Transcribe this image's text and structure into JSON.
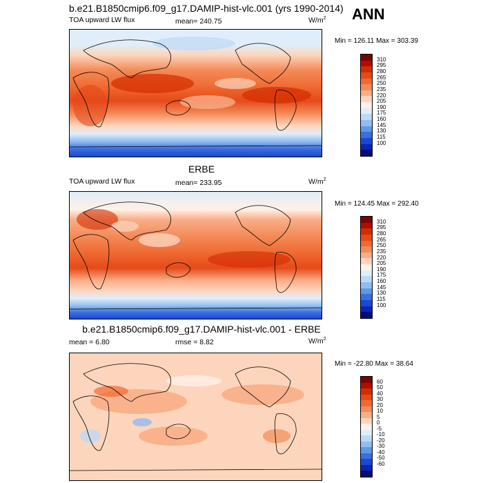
{
  "season": "ANN",
  "panels": [
    {
      "title": "b.e21.B1850cmip6.f09_g17.DAMIP-hist-vlc.001 (yrs 1990-2014)",
      "left_label": "TOA upward LW flux",
      "center_label": "mean= 240.75",
      "units": "W/m",
      "units_sup": "2",
      "minmax": "Min = 126.11 Max = 303.39",
      "colorbar": [
        "310",
        "295",
        "280",
        "265",
        "250",
        "235",
        "220",
        "205",
        "190",
        "175",
        "160",
        "145",
        "130",
        "115",
        "100"
      ],
      "colors": [
        "#7a0403",
        "#b30c00",
        "#d42c00",
        "#e64a19",
        "#ef6a32",
        "#f48a58",
        "#f9ae87",
        "#fdd5bd",
        "#fff1e6",
        "#dfeefa",
        "#bdd9f5",
        "#91bcf0",
        "#6496e6",
        "#3a6fde",
        "#1a48d4",
        "#0a25b6",
        "#000d7a"
      ]
    },
    {
      "title": "ERBE",
      "left_label": "TOA upward LW flux",
      "center_label": "mean= 233.95",
      "units": "W/m",
      "units_sup": "2",
      "minmax": "Min = 124.45 Max = 292.40",
      "colorbar": [
        "310",
        "295",
        "280",
        "265",
        "250",
        "235",
        "220",
        "205",
        "190",
        "175",
        "160",
        "145",
        "130",
        "115",
        "100"
      ],
      "colors": [
        "#7a0403",
        "#b30c00",
        "#d42c00",
        "#e64a19",
        "#ef6a32",
        "#f48a58",
        "#f9ae87",
        "#fdd5bd",
        "#fff1e6",
        "#dfeefa",
        "#bdd9f5",
        "#91bcf0",
        "#6496e6",
        "#3a6fde",
        "#1a48d4",
        "#0a25b6",
        "#000d7a"
      ]
    },
    {
      "title": "b.e21.B1850cmip6.f09_g17.DAMIP-hist-vlc.001 - ERBE",
      "left_label": "mean = 6.80",
      "center_label": "rmse = 8.82",
      "units": "W/m",
      "units_sup": "2",
      "minmax": "Min = -22.80 Max = 38.64",
      "colorbar": [
        "60",
        "50",
        "40",
        "30",
        "20",
        "10",
        "5",
        "0",
        "-5",
        "-10",
        "-20",
        "-30",
        "-40",
        "-50",
        "-60"
      ],
      "colors": [
        "#7a0403",
        "#b30c00",
        "#d42c00",
        "#e64a19",
        "#ef6a32",
        "#f48a58",
        "#f9ae87",
        "#fdd5bd",
        "#fff1e6",
        "#dfeefa",
        "#bdd9f5",
        "#91bcf0",
        "#6496e6",
        "#3a6fde",
        "#1a48d4",
        "#0a25b6",
        "#000d7a"
      ]
    }
  ],
  "chart_data": [
    {
      "type": "heatmap",
      "title": "b.e21.B1850cmip6.f09_g17.DAMIP-hist-vlc.001 (yrs 1990-2014)",
      "variable": "TOA upward LW flux",
      "mean": 240.75,
      "min": 126.11,
      "max": 303.39,
      "units": "W/m2",
      "levels": [
        100,
        115,
        130,
        145,
        160,
        175,
        190,
        205,
        220,
        235,
        250,
        265,
        280,
        295,
        310
      ]
    },
    {
      "type": "heatmap",
      "title": "ERBE",
      "variable": "TOA upward LW flux",
      "mean": 233.95,
      "min": 124.45,
      "max": 292.4,
      "units": "W/m2",
      "levels": [
        100,
        115,
        130,
        145,
        160,
        175,
        190,
        205,
        220,
        235,
        250,
        265,
        280,
        295,
        310
      ]
    },
    {
      "type": "heatmap",
      "title": "b.e21.B1850cmip6.f09_g17.DAMIP-hist-vlc.001 - ERBE",
      "mean": 6.8,
      "rmse": 8.82,
      "min": -22.8,
      "max": 38.64,
      "units": "W/m2",
      "levels": [
        -60,
        -50,
        -40,
        -30,
        -20,
        -10,
        -5,
        0,
        5,
        10,
        20,
        30,
        40,
        50,
        60
      ]
    }
  ]
}
